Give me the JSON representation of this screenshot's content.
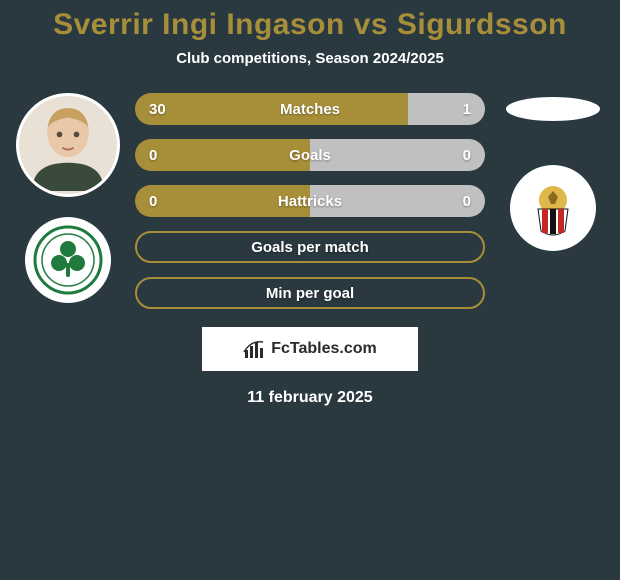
{
  "title": {
    "text": "Sverrir Ingi Ingason vs Sigurdsson",
    "color": "#a78f3a",
    "fontsize": 30
  },
  "subtitle": {
    "text": "Club competitions, Season 2024/2025",
    "color": "#ffffff",
    "fontsize": 15
  },
  "date": {
    "text": "11 february 2025",
    "color": "#ffffff",
    "fontsize": 16
  },
  "brand": {
    "text": "FcTables.com",
    "fontsize": 16
  },
  "colors": {
    "background": "#2a3840",
    "accent": "#a78f3a",
    "bar_left": "#a78f3a",
    "bar_right": "#c0c0c0",
    "bar_outline": "#a78f3a",
    "label_fontsize": 15,
    "value_fontsize": 15
  },
  "bars": [
    {
      "key": "matches",
      "label": "Matches",
      "left_value": "30",
      "right_value": "1",
      "left_pct": 78,
      "right_pct": 22,
      "style": "filled"
    },
    {
      "key": "goals",
      "label": "Goals",
      "left_value": "0",
      "right_value": "0",
      "left_pct": 50,
      "right_pct": 50,
      "style": "filled"
    },
    {
      "key": "hattricks",
      "label": "Hattricks",
      "left_value": "0",
      "right_value": "0",
      "left_pct": 50,
      "right_pct": 50,
      "style": "filled"
    },
    {
      "key": "goals_per_match",
      "label": "Goals per match",
      "left_value": "",
      "right_value": "",
      "left_pct": 0,
      "right_pct": 0,
      "style": "outline"
    },
    {
      "key": "min_per_goal",
      "label": "Min per goal",
      "left_value": "",
      "right_value": "",
      "left_pct": 0,
      "right_pct": 0,
      "style": "outline"
    }
  ],
  "player_left": {
    "name": "Sverrir Ingi Ingason",
    "club_name": "Panathinaikos",
    "club_colors": {
      "ring": "#1f7a3e",
      "inner": "#ffffff"
    }
  },
  "player_right": {
    "name": "Sigurdsson",
    "club_name": "Vikingur",
    "club_colors": {
      "outer": "#e0b84a",
      "stripe1": "#c62828",
      "stripe2": "#111111"
    }
  }
}
